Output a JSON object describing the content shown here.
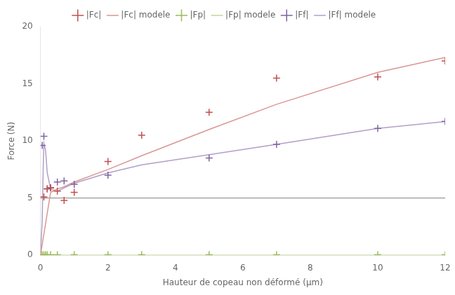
{
  "chart_data": {
    "type": "line",
    "xlabel": "Hauteur de copeau non déformé (µm)",
    "ylabel": "Force (N)",
    "xlim": [
      0,
      12
    ],
    "ylim": [
      0,
      20
    ],
    "xticks": [
      0,
      2,
      4,
      6,
      8,
      10,
      12
    ],
    "yticks": [
      0,
      5,
      10,
      15,
      20
    ],
    "grid": false,
    "series": [
      {
        "name": "|Fc|",
        "color": "#c0504d",
        "marker": "plus",
        "line_style": "none",
        "x": [
          0.1,
          0.2,
          0.3,
          0.5,
          0.7,
          1.0,
          2.0,
          3.0,
          5.0,
          7.0,
          10.0,
          12.0
        ],
        "values": [
          5.1,
          5.8,
          5.9,
          5.6,
          4.8,
          5.5,
          8.2,
          10.5,
          12.5,
          15.5,
          15.6,
          17.0
        ]
      },
      {
        "name": "|Fc| modele",
        "color": "#d99694",
        "marker": "none",
        "line_style": "solid",
        "x": [
          0.0,
          0.3,
          0.5,
          0.7,
          1.0,
          2.0,
          3.0,
          5.0,
          7.0,
          10.0,
          12.0
        ],
        "values": [
          0.0,
          5.5,
          5.8,
          6.0,
          6.4,
          7.5,
          8.7,
          11.0,
          13.2,
          16.0,
          17.3
        ]
      },
      {
        "name": "|Fp|",
        "color": "#9bbb59",
        "marker": "plus",
        "line_style": "none",
        "x": [
          0.05,
          0.1,
          0.15,
          0.2,
          0.3,
          0.5,
          1.0,
          2.0,
          3.0,
          5.0,
          7.0,
          10.0,
          12.0
        ],
        "values": [
          0.05,
          0.05,
          0.05,
          0.05,
          0.05,
          0.05,
          0.05,
          0.05,
          0.05,
          0.05,
          0.05,
          0.05,
          0.05
        ]
      },
      {
        "name": "|Fp| modele",
        "color": "#c3d69b",
        "marker": "none",
        "line_style": "solid",
        "x": [
          0.0,
          12.0
        ],
        "values": [
          0.0,
          0.0
        ]
      },
      {
        "name": "|Ff|",
        "color": "#8064a2",
        "marker": "plus",
        "line_style": "none",
        "x": [
          0.05,
          0.1,
          0.2,
          0.3,
          0.5,
          0.7,
          1.0,
          2.0,
          5.0,
          7.0,
          10.0,
          12.0
        ],
        "values": [
          9.6,
          10.4,
          5.8,
          5.9,
          6.4,
          6.5,
          6.2,
          7.0,
          8.5,
          9.7,
          11.1,
          11.7
        ]
      },
      {
        "name": "|Ff| modele",
        "color": "#b1a0c7",
        "marker": "none",
        "line_style": "solid",
        "x": [
          0.0,
          0.05,
          0.08,
          0.1,
          0.15,
          0.2,
          0.3,
          0.5,
          0.7,
          1.0,
          2.0,
          3.0,
          5.0,
          7.0,
          10.0,
          12.0
        ],
        "values": [
          0.0,
          3.0,
          7.5,
          9.8,
          9.2,
          7.2,
          5.8,
          5.6,
          5.9,
          6.3,
          7.2,
          7.9,
          8.8,
          9.7,
          11.1,
          11.7
        ]
      },
      {
        "color": "#808080",
        "marker": "none",
        "line_style": "solid",
        "x": [
          0.0,
          12.0
        ],
        "values": [
          5.0,
          5.0
        ]
      }
    ]
  }
}
